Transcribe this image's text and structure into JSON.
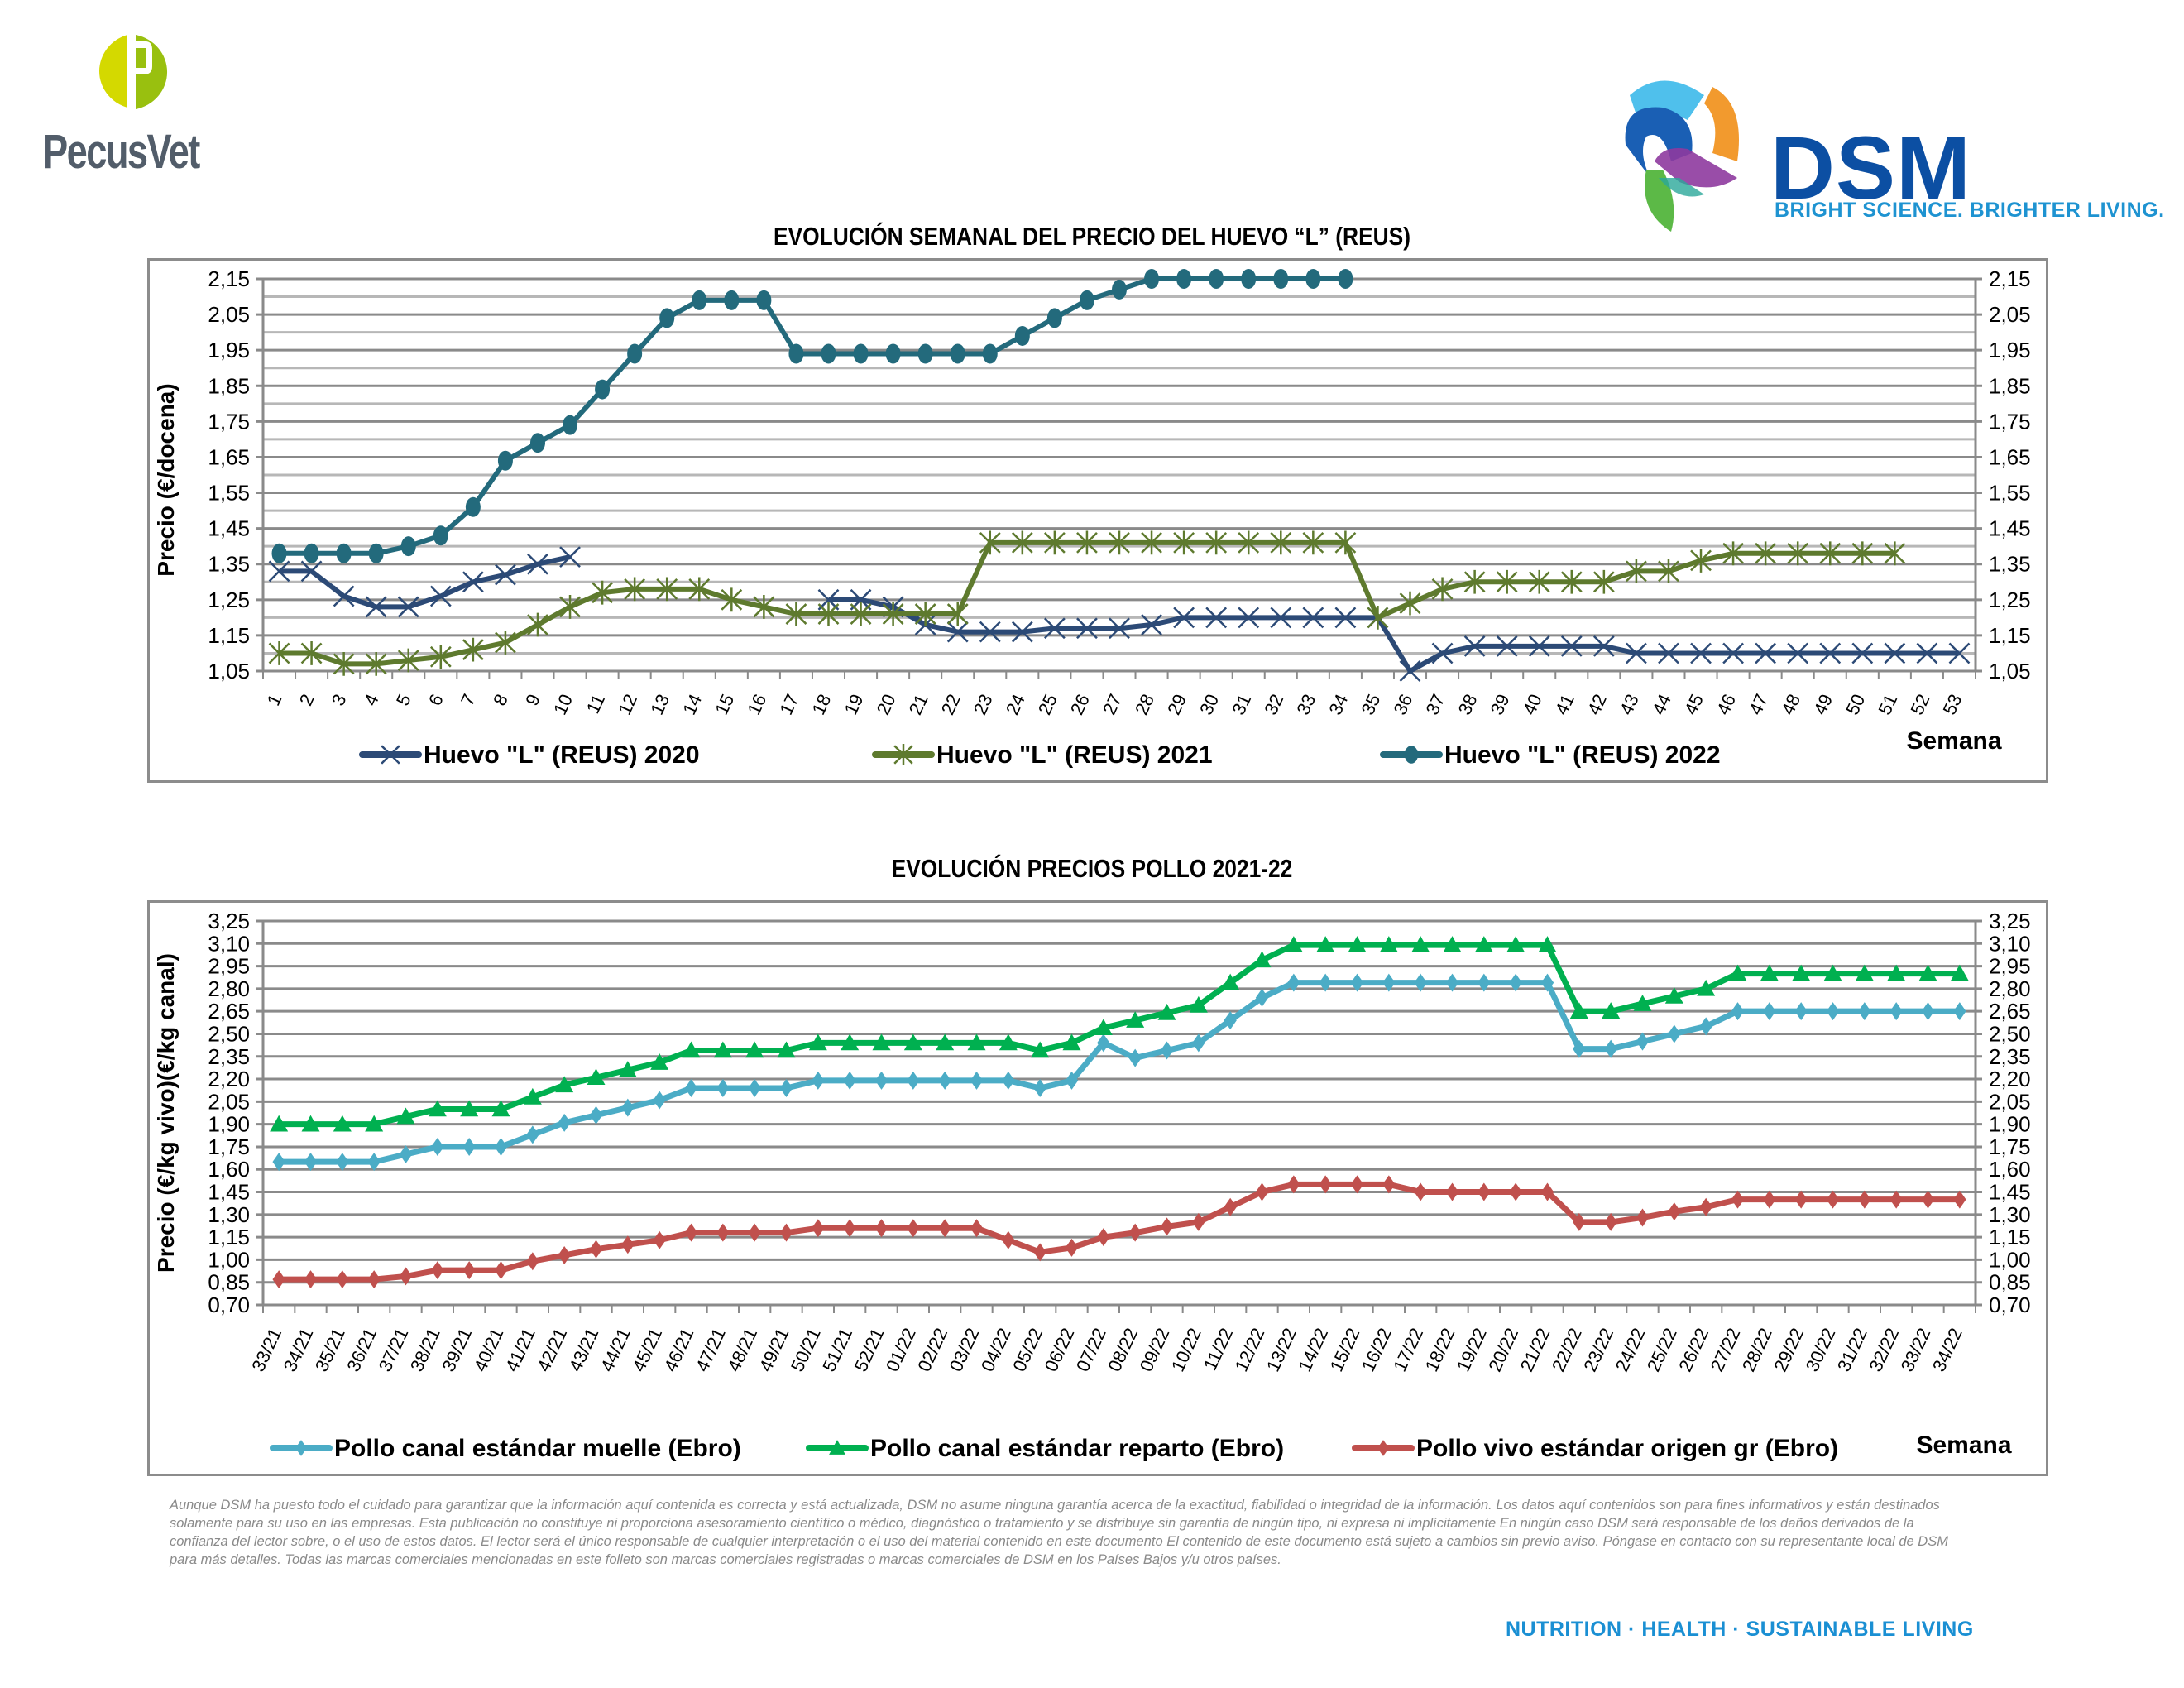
{
  "branding": {
    "pecusvet_name": "PecusVet",
    "dsm_name": "DSM",
    "dsm_tagline": "BRIGHT SCIENCE. BRIGHTER LIVING.",
    "footer_tagline": "NUTRITION  ·  HEALTH  ·  SUSTAINABLE LIVING"
  },
  "disclaimer": "Aunque DSM ha puesto todo el cuidado para garantizar que la información aquí contenida es correcta y está actualizada, DSM no asume ninguna garantía acerca de la exactitud, fiabilidad o integridad de la información. Los datos aquí contenidos son para fines informativos y están destinados solamente para su uso en las empresas. Esta publicación no constituye ni proporciona asesoramiento científico o médico, diagnóstico o tratamiento y se distribuye sin garantía de ningún tipo, ni expresa ni implícitamente En ningún caso DSM será responsable de los daños derivados de la confianza del lector sobre, o el uso de estos datos. El lector será el único responsable de cualquier interpretación o el uso del material contenido en este documento El contenido de este documento está sujeto a cambios sin previo aviso. Póngase en contacto con su representante local de DSM para más detalles. Todas las marcas comerciales mencionadas en este folleto son marcas comerciales registradas o marcas comerciales de DSM en los Países Bajos y/u otros países.",
  "chart_data": [
    {
      "type": "line",
      "title": "EVOLUCIÓN SEMANAL DEL PRECIO DEL HUEVO “L” (REUS)",
      "xlabel": "Semana",
      "ylabel": "Precio (€/docena)",
      "ylim": [
        1.05,
        2.15
      ],
      "yticks": [
        "1,05",
        "1,15",
        "1,25",
        "1,35",
        "1,45",
        "1,55",
        "1,65",
        "1,75",
        "1,85",
        "1,95",
        "2,05",
        "2,15"
      ],
      "ytick_values": [
        1.05,
        1.15,
        1.25,
        1.35,
        1.45,
        1.55,
        1.65,
        1.75,
        1.85,
        1.95,
        2.05,
        2.15
      ],
      "minor_grid_step": 0.05,
      "secondary_y_axis": true,
      "grid": true,
      "legend_position": "bottom",
      "categories": [
        "1",
        "2",
        "3",
        "4",
        "5",
        "6",
        "7",
        "8",
        "9",
        "10",
        "11",
        "12",
        "13",
        "14",
        "15",
        "16",
        "17",
        "18",
        "19",
        "20",
        "21",
        "22",
        "23",
        "24",
        "25",
        "26",
        "27",
        "28",
        "29",
        "30",
        "31",
        "32",
        "33",
        "34",
        "35",
        "36",
        "37",
        "38",
        "39",
        "40",
        "41",
        "42",
        "43",
        "44",
        "45",
        "46",
        "47",
        "48",
        "49",
        "50",
        "51",
        "52",
        "53"
      ],
      "series": [
        {
          "name": "Huevo \"L\" (REUS) 2020",
          "color": "#2c4a76",
          "marker": "x",
          "values": [
            1.33,
            1.33,
            1.26,
            1.23,
            1.23,
            1.26,
            1.3,
            1.32,
            1.35,
            1.37,
            null,
            null,
            null,
            null,
            null,
            null,
            null,
            1.25,
            1.25,
            1.23,
            1.18,
            1.16,
            1.16,
            1.16,
            1.17,
            1.17,
            1.17,
            1.18,
            1.2,
            1.2,
            1.2,
            1.2,
            1.2,
            1.2,
            1.2,
            1.05,
            1.1,
            1.12,
            1.12,
            1.12,
            1.12,
            1.12,
            1.1,
            1.1,
            1.1,
            1.1,
            1.1,
            1.1,
            1.1,
            1.1,
            1.1,
            1.1,
            1.1
          ]
        },
        {
          "name": "Huevo \"L\" (REUS) 2021",
          "color": "#5e7a2e",
          "marker": "star",
          "values": [
            1.1,
            1.1,
            1.07,
            1.07,
            1.08,
            1.09,
            1.11,
            1.13,
            1.18,
            1.23,
            1.27,
            1.28,
            1.28,
            1.28,
            1.25,
            1.23,
            1.21,
            1.21,
            1.21,
            1.21,
            1.21,
            1.21,
            1.41,
            1.41,
            1.41,
            1.41,
            1.41,
            1.41,
            1.41,
            1.41,
            1.41,
            1.41,
            1.41,
            1.41,
            1.2,
            1.24,
            1.28,
            1.3,
            1.3,
            1.3,
            1.3,
            1.3,
            1.33,
            1.33,
            1.36,
            1.38,
            1.38,
            1.38,
            1.38,
            1.38,
            1.38,
            null,
            null
          ]
        },
        {
          "name": "Huevo \"L\" (REUS) 2022",
          "color": "#236a7c",
          "marker": "circle",
          "values": [
            1.38,
            1.38,
            1.38,
            1.38,
            1.4,
            1.43,
            1.51,
            1.64,
            1.69,
            1.74,
            1.84,
            1.94,
            2.04,
            2.09,
            2.09,
            2.09,
            1.94,
            1.94,
            1.94,
            1.94,
            1.94,
            1.94,
            1.94,
            1.99,
            2.04,
            2.09,
            2.12,
            2.15,
            2.15,
            2.15,
            2.15,
            2.15,
            2.15,
            2.15,
            null,
            null,
            null,
            null,
            null,
            null,
            null,
            null,
            null,
            null,
            null,
            null,
            null,
            null,
            null,
            null,
            null,
            null,
            null
          ]
        }
      ]
    },
    {
      "type": "line",
      "title": "EVOLUCIÓN PRECIOS POLLO 2021-22",
      "xlabel": "Semana",
      "ylabel": "Precio (€/kg vivo)(€/kg canal)",
      "ylim": [
        0.7,
        3.25
      ],
      "yticks": [
        "0,70",
        "0,85",
        "1,00",
        "1,15",
        "1,30",
        "1,45",
        "1,60",
        "1,75",
        "1,90",
        "2,05",
        "2,20",
        "2,35",
        "2,50",
        "2,65",
        "2,80",
        "2,95",
        "3,10",
        "3,25"
      ],
      "ytick_values": [
        0.7,
        0.85,
        1.0,
        1.15,
        1.3,
        1.45,
        1.6,
        1.75,
        1.9,
        2.05,
        2.2,
        2.35,
        2.5,
        2.65,
        2.8,
        2.95,
        3.1,
        3.25
      ],
      "secondary_y_axis": true,
      "grid": true,
      "legend_position": "bottom",
      "categories": [
        "33/21",
        "34/21",
        "35/21",
        "36/21",
        "37/21",
        "38/21",
        "39/21",
        "40/21",
        "41/21",
        "42/21",
        "43/21",
        "44/21",
        "45/21",
        "46/21",
        "47/21",
        "48/21",
        "49/21",
        "50/21",
        "51/21",
        "52/21",
        "01/22",
        "02/22",
        "03/22",
        "04/22",
        "05/22",
        "06/22",
        "07/22",
        "08/22",
        "09/22",
        "10/22",
        "11/22",
        "12/22",
        "13/22",
        "14/22",
        "15/22",
        "16/22",
        "17/22",
        "18/22",
        "19/22",
        "20/22",
        "21/22",
        "22/22",
        "23/22",
        "24/22",
        "25/22",
        "26/22",
        "27/22",
        "28/22",
        "29/22",
        "30/22",
        "31/22",
        "32/22",
        "33/22",
        "34/22"
      ],
      "series": [
        {
          "name": "Pollo canal estándar muelle (Ebro)",
          "color": "#4bacc6",
          "marker": "diamond",
          "values": [
            1.65,
            1.65,
            1.65,
            1.65,
            1.7,
            1.75,
            1.75,
            1.75,
            1.83,
            1.91,
            1.96,
            2.01,
            2.06,
            2.14,
            2.14,
            2.14,
            2.14,
            2.19,
            2.19,
            2.19,
            2.19,
            2.19,
            2.19,
            2.19,
            2.14,
            2.19,
            2.44,
            2.34,
            2.39,
            2.44,
            2.59,
            2.74,
            2.84,
            2.84,
            2.84,
            2.84,
            2.84,
            2.84,
            2.84,
            2.84,
            2.84,
            2.4,
            2.4,
            2.45,
            2.5,
            2.55,
            2.65,
            2.65,
            2.65,
            2.65,
            2.65,
            2.65,
            2.65,
            2.65
          ]
        },
        {
          "name": "Pollo canal estándar reparto (Ebro)",
          "color": "#00b050",
          "marker": "triangle",
          "values": [
            1.9,
            1.9,
            1.9,
            1.9,
            1.95,
            2.0,
            2.0,
            2.0,
            2.08,
            2.16,
            2.21,
            2.26,
            2.31,
            2.39,
            2.39,
            2.39,
            2.39,
            2.44,
            2.44,
            2.44,
            2.44,
            2.44,
            2.44,
            2.44,
            2.39,
            2.44,
            2.54,
            2.59,
            2.64,
            2.69,
            2.84,
            2.99,
            3.09,
            3.09,
            3.09,
            3.09,
            3.09,
            3.09,
            3.09,
            3.09,
            3.09,
            2.65,
            2.65,
            2.7,
            2.75,
            2.8,
            2.9,
            2.9,
            2.9,
            2.9,
            2.9,
            2.9,
            2.9,
            2.9
          ]
        },
        {
          "name": "Pollo vivo estándar origen gr (Ebro)",
          "color": "#c0504d",
          "marker": "diamond",
          "values": [
            0.87,
            0.87,
            0.87,
            0.87,
            0.89,
            0.93,
            0.93,
            0.93,
            0.99,
            1.03,
            1.07,
            1.1,
            1.13,
            1.18,
            1.18,
            1.18,
            1.18,
            1.21,
            1.21,
            1.21,
            1.21,
            1.21,
            1.21,
            1.13,
            1.05,
            1.08,
            1.15,
            1.18,
            1.22,
            1.25,
            1.35,
            1.45,
            1.5,
            1.5,
            1.5,
            1.5,
            1.45,
            1.45,
            1.45,
            1.45,
            1.45,
            1.25,
            1.25,
            1.28,
            1.32,
            1.35,
            1.4,
            1.4,
            1.4,
            1.4,
            1.4,
            1.4,
            1.4,
            1.4
          ]
        }
      ]
    }
  ]
}
